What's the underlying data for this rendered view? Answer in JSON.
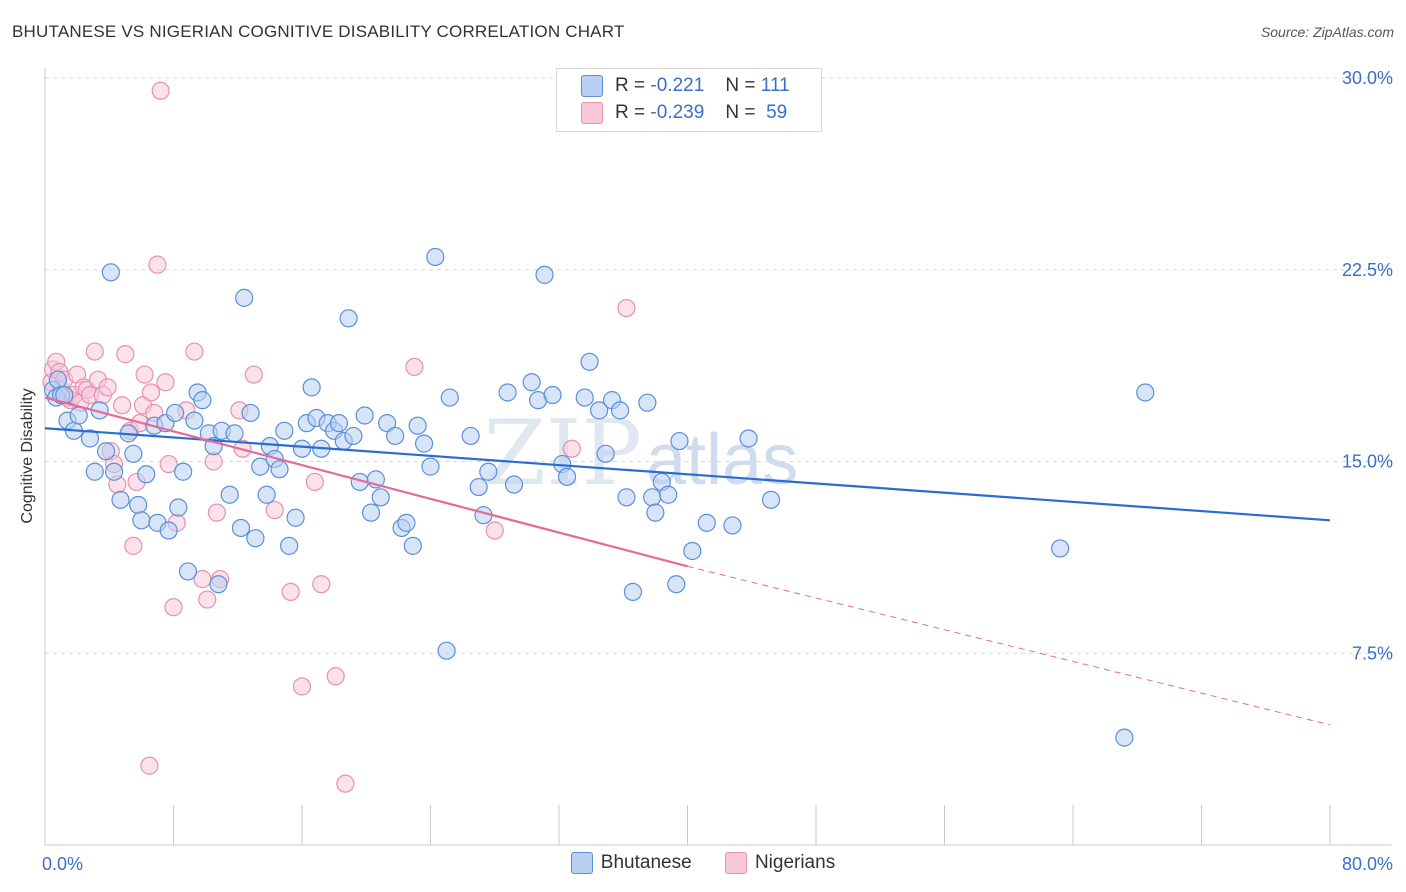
{
  "title": "BHUTANESE VS NIGERIAN COGNITIVE DISABILITY CORRELATION CHART",
  "source": "Source: ZipAtlas.com",
  "watermark": "ZIPatlas",
  "colors": {
    "blue_fill": "#b8d0f2",
    "blue_stroke": "#5b8fd8",
    "blue_line": "#2a6dd0",
    "pink_fill": "#f8c8d8",
    "pink_stroke": "#e890b0",
    "pink_line": "#e66a96",
    "tick_label": "#3a6fc8",
    "grid": "#d8d8d8"
  },
  "legend": {
    "rows": [
      {
        "r_label": "R =",
        "r_value": "-0.221",
        "n_label": "N =",
        "n_value": "111"
      },
      {
        "r_label": "R =",
        "r_value": "-0.239",
        "n_label": "N =",
        "n_value": "59"
      }
    ]
  },
  "bottom_legend": [
    "Bhutanese",
    "Nigerians"
  ],
  "chart_data": {
    "type": "scatter",
    "title": "BHUTANESE VS NIGERIAN COGNITIVE DISABILITY CORRELATION CHART",
    "xlabel": "",
    "ylabel": "Cognitive Disability",
    "xlim": [
      0,
      80
    ],
    "ylim": [
      0,
      31
    ],
    "x_tick_labels": [
      "0.0%",
      "80.0%"
    ],
    "y_ticks": [
      7.5,
      15.0,
      22.5,
      30.0
    ],
    "y_tick_labels": [
      "7.5%",
      "15.0%",
      "22.5%",
      "30.0%"
    ],
    "grid": true,
    "legend_position": "top-center",
    "series": [
      {
        "name": "Bhutanese",
        "R": -0.221,
        "N": 111,
        "trend": {
          "x": [
            0,
            80
          ],
          "y": [
            16.3,
            12.7
          ]
        },
        "points": [
          [
            0.5,
            17.8
          ],
          [
            0.7,
            17.5
          ],
          [
            0.8,
            18.2
          ],
          [
            1.0,
            17.6
          ],
          [
            1.2,
            17.6
          ],
          [
            1.4,
            16.6
          ],
          [
            1.8,
            16.2
          ],
          [
            2.1,
            16.8
          ],
          [
            2.8,
            15.9
          ],
          [
            3.1,
            14.6
          ],
          [
            3.4,
            17.0
          ],
          [
            3.8,
            15.4
          ],
          [
            4.1,
            22.4
          ],
          [
            4.3,
            14.6
          ],
          [
            4.7,
            13.5
          ],
          [
            5.2,
            16.1
          ],
          [
            5.5,
            15.3
          ],
          [
            5.8,
            13.3
          ],
          [
            6.0,
            12.7
          ],
          [
            6.3,
            14.5
          ],
          [
            6.8,
            16.4
          ],
          [
            7.0,
            12.6
          ],
          [
            7.5,
            16.5
          ],
          [
            7.7,
            12.3
          ],
          [
            8.1,
            16.9
          ],
          [
            8.3,
            13.2
          ],
          [
            8.6,
            14.6
          ],
          [
            8.9,
            10.7
          ],
          [
            9.3,
            16.6
          ],
          [
            9.5,
            17.7
          ],
          [
            9.8,
            17.4
          ],
          [
            10.2,
            16.1
          ],
          [
            10.5,
            15.6
          ],
          [
            10.8,
            10.2
          ],
          [
            11.0,
            16.2
          ],
          [
            11.5,
            13.7
          ],
          [
            11.8,
            16.1
          ],
          [
            12.2,
            12.4
          ],
          [
            12.4,
            21.4
          ],
          [
            12.8,
            16.9
          ],
          [
            13.1,
            12.0
          ],
          [
            13.4,
            14.8
          ],
          [
            13.8,
            13.7
          ],
          [
            14.0,
            15.6
          ],
          [
            14.3,
            15.1
          ],
          [
            14.6,
            14.7
          ],
          [
            14.9,
            16.2
          ],
          [
            15.2,
            11.7
          ],
          [
            15.6,
            12.8
          ],
          [
            16.0,
            15.5
          ],
          [
            16.3,
            16.5
          ],
          [
            16.6,
            17.9
          ],
          [
            16.9,
            16.7
          ],
          [
            17.2,
            15.5
          ],
          [
            17.6,
            16.5
          ],
          [
            18.0,
            16.2
          ],
          [
            18.3,
            16.5
          ],
          [
            18.6,
            15.8
          ],
          [
            18.9,
            20.6
          ],
          [
            19.2,
            16.0
          ],
          [
            19.6,
            14.2
          ],
          [
            19.9,
            16.8
          ],
          [
            20.3,
            13.0
          ],
          [
            20.6,
            14.3
          ],
          [
            20.9,
            13.6
          ],
          [
            21.3,
            16.5
          ],
          [
            21.8,
            16.0
          ],
          [
            22.2,
            12.4
          ],
          [
            22.5,
            12.6
          ],
          [
            22.9,
            11.7
          ],
          [
            23.2,
            16.4
          ],
          [
            23.6,
            15.7
          ],
          [
            24.0,
            14.8
          ],
          [
            24.3,
            23.0
          ],
          [
            25.0,
            7.6
          ],
          [
            25.2,
            17.5
          ],
          [
            26.5,
            16.0
          ],
          [
            27.0,
            14.0
          ],
          [
            27.3,
            12.9
          ],
          [
            27.6,
            14.6
          ],
          [
            28.8,
            17.7
          ],
          [
            29.2,
            14.1
          ],
          [
            30.3,
            18.1
          ],
          [
            30.7,
            17.4
          ],
          [
            31.1,
            22.3
          ],
          [
            31.6,
            17.6
          ],
          [
            32.2,
            14.9
          ],
          [
            32.5,
            14.4
          ],
          [
            33.6,
            17.5
          ],
          [
            33.9,
            18.9
          ],
          [
            34.5,
            17.0
          ],
          [
            34.9,
            15.3
          ],
          [
            35.3,
            17.4
          ],
          [
            35.8,
            17.0
          ],
          [
            36.2,
            13.6
          ],
          [
            36.6,
            9.9
          ],
          [
            37.5,
            17.3
          ],
          [
            37.8,
            13.6
          ],
          [
            38.0,
            13.0
          ],
          [
            38.4,
            14.2
          ],
          [
            38.8,
            13.7
          ],
          [
            39.3,
            10.2
          ],
          [
            39.5,
            15.8
          ],
          [
            40.3,
            11.5
          ],
          [
            41.2,
            12.6
          ],
          [
            42.8,
            12.5
          ],
          [
            43.8,
            15.9
          ],
          [
            45.2,
            13.5
          ],
          [
            63.2,
            11.6
          ],
          [
            67.2,
            4.2
          ],
          [
            68.5,
            17.7
          ]
        ]
      },
      {
        "name": "Nigerians",
        "R": -0.239,
        "N": 59,
        "trend": {
          "x": [
            0,
            40
          ],
          "y": [
            17.5,
            10.9
          ]
        },
        "trend_dashed": {
          "x": [
            40,
            80
          ],
          "y": [
            10.9,
            4.7
          ]
        },
        "points": [
          [
            0.4,
            18.1
          ],
          [
            0.5,
            18.6
          ],
          [
            0.7,
            18.9
          ],
          [
            0.9,
            18.5
          ],
          [
            1.0,
            17.8
          ],
          [
            1.2,
            18.2
          ],
          [
            1.4,
            17.5
          ],
          [
            1.6,
            17.4
          ],
          [
            1.8,
            17.6
          ],
          [
            2.0,
            18.4
          ],
          [
            2.2,
            17.3
          ],
          [
            2.4,
            17.9
          ],
          [
            2.6,
            17.8
          ],
          [
            2.8,
            17.6
          ],
          [
            3.1,
            19.3
          ],
          [
            3.3,
            18.2
          ],
          [
            3.6,
            17.6
          ],
          [
            3.9,
            17.9
          ],
          [
            4.1,
            15.4
          ],
          [
            4.3,
            14.9
          ],
          [
            4.5,
            14.1
          ],
          [
            4.8,
            17.2
          ],
          [
            5.0,
            19.2
          ],
          [
            5.3,
            16.2
          ],
          [
            5.5,
            11.7
          ],
          [
            5.7,
            14.2
          ],
          [
            5.9,
            16.5
          ],
          [
            6.1,
            17.2
          ],
          [
            6.2,
            18.4
          ],
          [
            6.6,
            17.7
          ],
          [
            6.8,
            16.9
          ],
          [
            7.0,
            22.7
          ],
          [
            7.2,
            29.5
          ],
          [
            7.5,
            18.1
          ],
          [
            7.7,
            14.9
          ],
          [
            8.0,
            9.3
          ],
          [
            8.2,
            12.6
          ],
          [
            8.8,
            17.0
          ],
          [
            9.3,
            19.3
          ],
          [
            9.8,
            10.4
          ],
          [
            10.1,
            9.6
          ],
          [
            10.5,
            15.0
          ],
          [
            10.7,
            13.0
          ],
          [
            10.9,
            10.4
          ],
          [
            12.1,
            17.0
          ],
          [
            12.3,
            15.5
          ],
          [
            13.0,
            18.4
          ],
          [
            14.3,
            13.1
          ],
          [
            15.3,
            9.9
          ],
          [
            16.0,
            6.2
          ],
          [
            16.8,
            14.2
          ],
          [
            17.2,
            10.2
          ],
          [
            18.1,
            6.6
          ],
          [
            18.7,
            2.4
          ],
          [
            6.5,
            3.1
          ],
          [
            23.0,
            18.7
          ],
          [
            28.0,
            12.3
          ],
          [
            32.8,
            15.5
          ],
          [
            36.2,
            21.0
          ]
        ]
      }
    ]
  }
}
